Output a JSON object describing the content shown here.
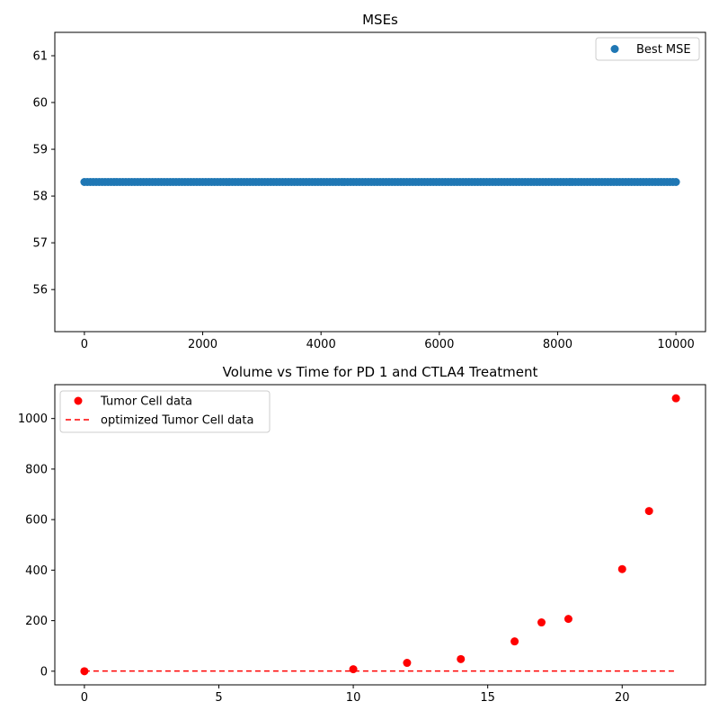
{
  "chart_data": [
    {
      "type": "scatter",
      "title": "MSEs",
      "xlabel": "",
      "ylabel": "",
      "xlim": [
        -500,
        10500
      ],
      "ylim": [
        55.1,
        61.5
      ],
      "xticks": [
        0,
        2000,
        4000,
        6000,
        8000,
        10000
      ],
      "xtick_labels": [
        "0",
        "2000",
        "4000",
        "6000",
        "8000",
        "10000"
      ],
      "yticks": [
        56,
        57,
        58,
        59,
        60,
        61
      ],
      "ytick_labels": [
        "56",
        "57",
        "58",
        "59",
        "60",
        "61"
      ],
      "grid": false,
      "legend": "top-right",
      "series": [
        {
          "name": "Best MSE",
          "marker": "circle",
          "color": "#1f77b4",
          "x_range": [
            0,
            10000
          ],
          "y_constant": 58.3,
          "n_points": 10001
        }
      ]
    },
    {
      "type": "scatter",
      "title": "Volume vs Time for PD 1 and CTLA4 Treatment",
      "xlabel": "",
      "ylabel": "",
      "xlim": [
        -1.1,
        23.1
      ],
      "ylim": [
        -54,
        1134
      ],
      "xticks": [
        0,
        5,
        10,
        15,
        20
      ],
      "xtick_labels": [
        "0",
        "5",
        "10",
        "15",
        "20"
      ],
      "yticks": [
        0,
        200,
        400,
        600,
        800,
        1000
      ],
      "ytick_labels": [
        "0",
        "200",
        "400",
        "600",
        "800",
        "1000"
      ],
      "grid": false,
      "legend": "top-left",
      "series": [
        {
          "name": "Tumor Cell data",
          "marker": "circle",
          "color": "#ff0000",
          "x": [
            0,
            10,
            12,
            14,
            16,
            17,
            18,
            20,
            21,
            22
          ],
          "y": [
            0,
            8,
            33,
            48,
            118,
            193,
            207,
            404,
            634,
            1080
          ]
        },
        {
          "name": "optimized Tumor Cell data",
          "line": "dashed",
          "color": "#ff0000",
          "x": [
            0,
            22
          ],
          "y": [
            0.5,
            0.5
          ]
        }
      ]
    }
  ]
}
